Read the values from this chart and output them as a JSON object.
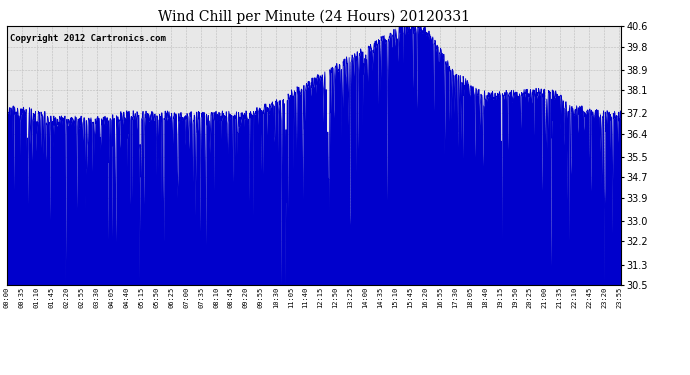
{
  "title": "Wind Chill per Minute (24 Hours) 20120331",
  "copyright": "Copyright 2012 Cartronics.com",
  "yticks": [
    30.5,
    31.3,
    32.2,
    33.0,
    33.9,
    34.7,
    35.5,
    36.4,
    37.2,
    38.1,
    38.9,
    39.8,
    40.6
  ],
  "ymin": 30.5,
  "ymax": 40.6,
  "line_color": "#0000cc",
  "bg_color": "#ffffff",
  "plot_bg": "#e8e8e8",
  "grid_color": "#aaaaaa",
  "title_fontsize": 10,
  "copyright_fontsize": 6.5,
  "xtick_fontsize": 5,
  "ytick_fontsize": 7
}
